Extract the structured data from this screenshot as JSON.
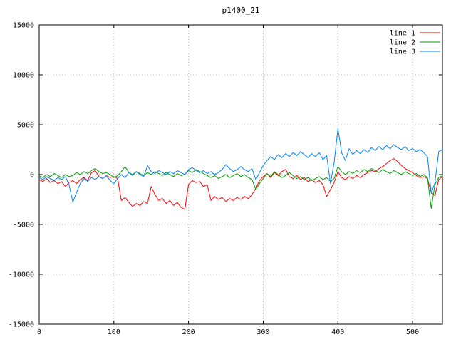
{
  "chart_data": {
    "type": "line",
    "title": "p1400_21",
    "xlabel": "",
    "ylabel": "",
    "xlim": [
      0,
      540
    ],
    "ylim": [
      -15000,
      15000
    ],
    "xticks": [
      0,
      100,
      200,
      300,
      400,
      500
    ],
    "yticks": [
      -15000,
      -10000,
      -5000,
      0,
      5000,
      10000,
      15000
    ],
    "grid": true,
    "legend_position": "top-right",
    "colors": {
      "background": "#ffffff",
      "border": "#000000",
      "grid": "#b4b4b4",
      "text": "#000000"
    },
    "x": [
      0,
      5,
      10,
      15,
      20,
      25,
      30,
      35,
      40,
      45,
      50,
      55,
      60,
      65,
      70,
      75,
      80,
      85,
      90,
      95,
      100,
      105,
      110,
      115,
      120,
      125,
      130,
      135,
      140,
      145,
      150,
      155,
      160,
      165,
      170,
      175,
      180,
      185,
      190,
      195,
      200,
      205,
      210,
      215,
      220,
      225,
      230,
      235,
      240,
      245,
      250,
      255,
      260,
      265,
      270,
      275,
      280,
      285,
      290,
      295,
      300,
      305,
      310,
      315,
      320,
      325,
      330,
      335,
      340,
      345,
      350,
      355,
      360,
      365,
      370,
      375,
      380,
      385,
      390,
      395,
      400,
      405,
      410,
      415,
      420,
      425,
      430,
      435,
      440,
      445,
      450,
      455,
      460,
      465,
      470,
      475,
      480,
      485,
      490,
      495,
      500,
      505,
      510,
      515,
      520,
      525,
      530,
      535,
      540
    ],
    "series": [
      {
        "name": "line 1",
        "color": "#ff0000",
        "values": [
          -500,
          -700,
          -400,
          -800,
          -600,
          -900,
          -700,
          -1200,
          -800,
          -600,
          -900,
          -500,
          -300,
          -600,
          200,
          400,
          -200,
          -400,
          -100,
          -300,
          -200,
          -400,
          -2600,
          -2300,
          -2800,
          -3200,
          -2900,
          -3100,
          -2700,
          -2900,
          -1200,
          -2000,
          -2600,
          -2400,
          -2900,
          -2600,
          -3100,
          -2800,
          -3300,
          -3500,
          -1000,
          -600,
          -800,
          -700,
          -1200,
          -1000,
          -2600,
          -2200,
          -2500,
          -2300,
          -2700,
          -2400,
          -2600,
          -2300,
          -2500,
          -2200,
          -2400,
          -2000,
          -1400,
          -600,
          -200,
          100,
          -300,
          200,
          -100,
          300,
          500,
          -200,
          -400,
          -100,
          -500,
          -300,
          -700,
          -500,
          -800,
          -600,
          -1000,
          -2200,
          -1500,
          -800,
          300,
          -300,
          -500,
          -200,
          -400,
          -100,
          -300,
          0,
          200,
          400,
          300,
          600,
          800,
          1100,
          1400,
          1600,
          1300,
          900,
          600,
          400,
          200,
          -100,
          -300,
          -200,
          -400,
          -1800,
          -2100,
          -500,
          -200
        ]
      },
      {
        "name": "line 2",
        "color": "#00a000",
        "values": [
          -100,
          -300,
          0,
          -200,
          100,
          -100,
          -300,
          0,
          -200,
          -100,
          200,
          0,
          300,
          100,
          400,
          600,
          300,
          100,
          200,
          0,
          -300,
          -100,
          300,
          800,
          200,
          0,
          300,
          100,
          -100,
          200,
          0,
          300,
          100,
          -100,
          200,
          0,
          -200,
          100,
          -100,
          0,
          400,
          200,
          500,
          300,
          100,
          -100,
          -300,
          -100,
          -400,
          -200,
          0,
          -300,
          -100,
          100,
          -200,
          0,
          -300,
          -500,
          -1500,
          -900,
          -400,
          100,
          -200,
          300,
          0,
          -300,
          -100,
          200,
          -100,
          -400,
          -200,
          -500,
          -300,
          -600,
          -400,
          -200,
          -500,
          -300,
          -700,
          -400,
          800,
          300,
          0,
          300,
          100,
          400,
          200,
          500,
          300,
          600,
          400,
          200,
          500,
          300,
          100,
          400,
          200,
          0,
          300,
          100,
          -100,
          100,
          -200,
          0,
          -300,
          -3400,
          -1000,
          -300,
          -100
        ]
      },
      {
        "name": "line 3",
        "color": "#0080ff",
        "values": [
          -300,
          -500,
          -200,
          -400,
          -600,
          -300,
          -500,
          -200,
          -1000,
          -2800,
          -1800,
          -900,
          -400,
          -700,
          -300,
          -500,
          -200,
          -400,
          -100,
          -600,
          -900,
          -400,
          0,
          -300,
          200,
          -100,
          300,
          0,
          -200,
          900,
          300,
          100,
          400,
          200,
          0,
          300,
          100,
          400,
          200,
          0,
          500,
          700,
          400,
          200,
          400,
          100,
          300,
          0,
          200,
          500,
          1000,
          600,
          300,
          500,
          800,
          500,
          300,
          600,
          -500,
          200,
          900,
          1400,
          1800,
          1500,
          2000,
          1700,
          2100,
          1800,
          2200,
          1900,
          2300,
          2000,
          1700,
          2100,
          1800,
          2200,
          1500,
          1900,
          -900,
          1200,
          4600,
          2200,
          1400,
          2600,
          2000,
          2400,
          2100,
          2500,
          2200,
          2700,
          2400,
          2800,
          2500,
          2900,
          2600,
          3000,
          2700,
          2500,
          2800,
          2400,
          2600,
          2300,
          2500,
          2200,
          1800,
          -1900,
          -800,
          2300,
          2500
        ]
      }
    ]
  }
}
